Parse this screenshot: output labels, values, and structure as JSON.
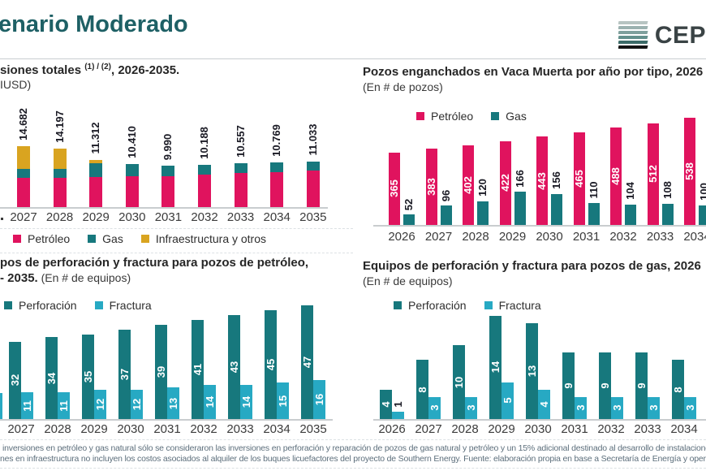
{
  "header": {
    "title": "enario Moderado",
    "title_color": "#1E6065",
    "logo_text": "CEP",
    "logo_stripe_colors": [
      "#B7C4C2",
      "#9BB1AF",
      "#7FA09D",
      "#63908C",
      "#3C6B68",
      "#141414"
    ]
  },
  "chart_data": [
    {
      "type": "bar",
      "stacked": true,
      "title_pre": "siones totales ",
      "title_sup": "(1) / (2)",
      "title_post": ", 2026-2035.",
      "subtitle": "IUSD)",
      "categories": [
        "2027",
        "2028",
        "2029",
        "2030",
        "2031",
        "2032",
        "2033",
        "2034",
        "2035"
      ],
      "series": [
        {
          "name": "Petróleo",
          "color": "#E0135E",
          "values": [
            7000,
            7100,
            7300,
            7500,
            7400,
            7800,
            8200,
            8500,
            8800
          ]
        },
        {
          "name": "Gas",
          "color": "#17787D",
          "values": [
            2250,
            2100,
            3200,
            2910,
            2590,
            2388,
            2357,
            2269,
            2233
          ]
        },
        {
          "name": "Infraestructura y otros",
          "color": "#D9A420",
          "values": [
            5432,
            4997,
            812,
            0,
            0,
            0,
            0,
            0,
            0
          ]
        }
      ],
      "total_labels": [
        "14.682",
        "14.197",
        "11.312",
        "10.410",
        "9.990",
        "10.188",
        "10.557",
        "10.769",
        "11.033"
      ],
      "ylim": [
        0,
        15000
      ]
    },
    {
      "type": "bar",
      "grouped": true,
      "title": "Pozos enganchados en Vaca Muerta por año por tipo, 2026",
      "subtitle": "(En # de pozos)",
      "categories": [
        "2026",
        "2027",
        "2028",
        "2029",
        "2030",
        "2031",
        "2032",
        "2033",
        "2034"
      ],
      "series": [
        {
          "name": "Petróleo",
          "color": "#E0135E",
          "values": [
            365,
            383,
            402,
            422,
            443,
            465,
            488,
            512,
            538
          ]
        },
        {
          "name": "Gas",
          "color": "#17787D",
          "values": [
            52,
            96,
            120,
            166,
            156,
            110,
            104,
            108,
            100
          ]
        }
      ],
      "ylim": [
        0,
        560
      ]
    },
    {
      "type": "bar",
      "grouped": true,
      "title": "pos de perforación y fractura para pozos de petróleo,",
      "title2_bold": "- 2035.",
      "title2_reg": " (En # de equipos)",
      "categories": [
        "2027",
        "2028",
        "2029",
        "2030",
        "2031",
        "2032",
        "2033",
        "2034",
        "2035"
      ],
      "series": [
        {
          "name": "Perforación",
          "color": "#17787D",
          "values": [
            32,
            34,
            35,
            37,
            39,
            41,
            43,
            45,
            47
          ]
        },
        {
          "name": "Fractura",
          "color": "#27A9C3",
          "values": [
            11,
            11,
            12,
            12,
            13,
            14,
            14,
            15,
            16
          ]
        }
      ],
      "ylim": [
        0,
        50
      ]
    },
    {
      "type": "bar",
      "grouped": true,
      "title": "Equipos de perforación y fractura para pozos de gas, 2026",
      "subtitle": "(En # de equipos)",
      "categories": [
        "2026",
        "2027",
        "2028",
        "2029",
        "2030",
        "2031",
        "2032",
        "2033",
        "2034"
      ],
      "series": [
        {
          "name": "Perforación",
          "color": "#17787D",
          "values": [
            4,
            8,
            10,
            14,
            13,
            9,
            9,
            9,
            8
          ]
        },
        {
          "name": "Fractura",
          "color": "#27A9C3",
          "values": [
            1,
            3,
            3,
            5,
            4,
            3,
            3,
            3,
            3
          ]
        }
      ],
      "ylim": [
        0,
        15
      ]
    }
  ],
  "footnote": {
    "line1": "inversiones en petróleo y gas natural sólo se consideraron las inversiones en perforación y reparación de pozos de gas natural y petróleo y un 15% adicional destinado al desarrollo de instalacione",
    "line2": "nes en infraestructura no incluyen los costos asociados al alquiler de los buques licuefactores del proyecto de Southern Energy. Fuente: elaboración propia en base a Secretaría de Energía y oper"
  }
}
